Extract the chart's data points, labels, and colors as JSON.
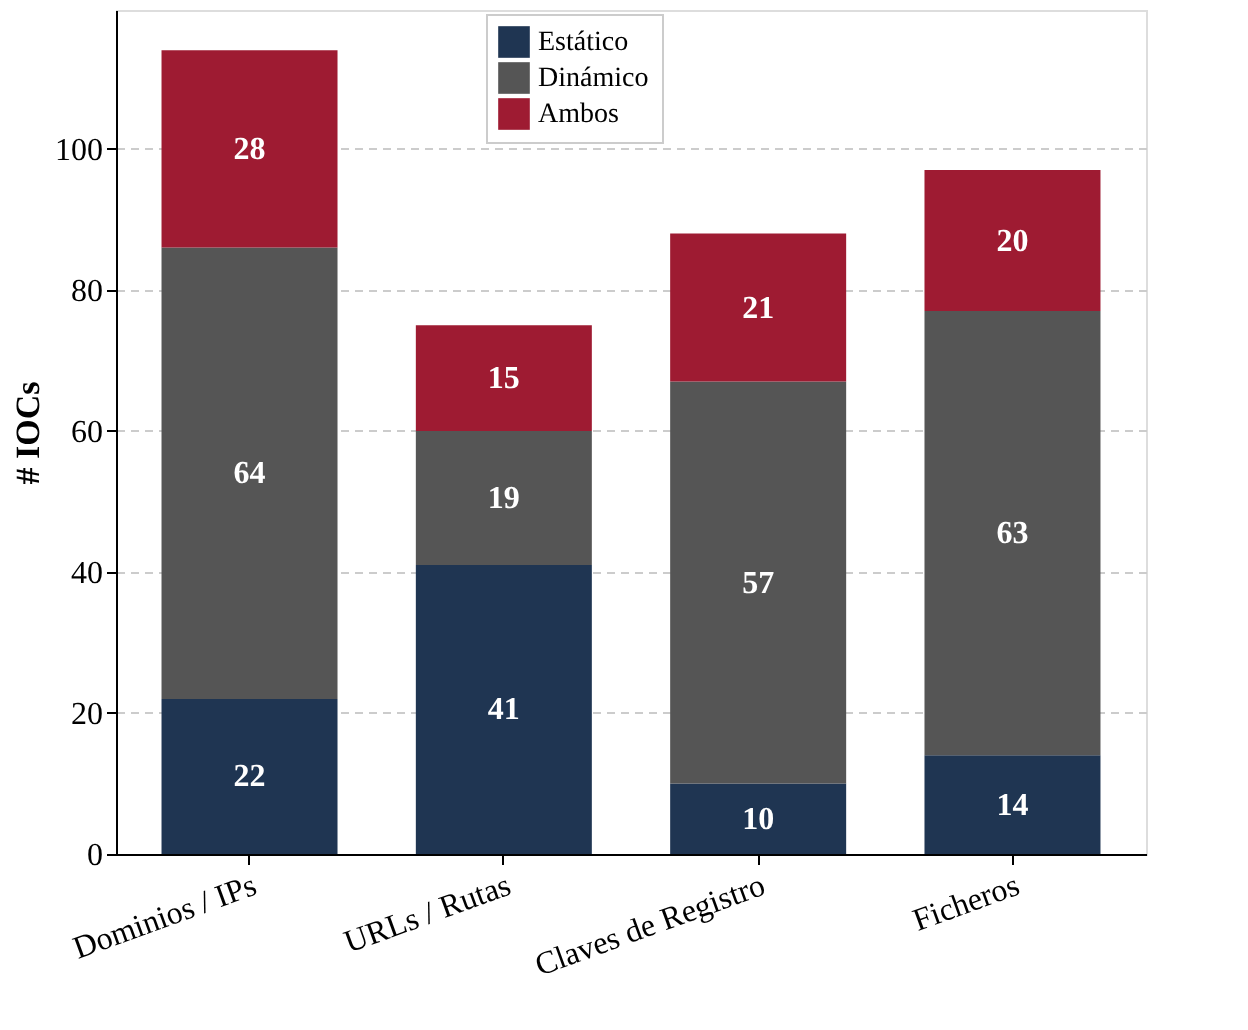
{
  "chart_data": {
    "type": "bar",
    "stacked": true,
    "ylabel": "# IOCs",
    "categories": [
      "Dominios / IPs",
      "URLs / Rutas",
      "Claves de Registro",
      "Ficheros"
    ],
    "series": [
      {
        "name": "Estático",
        "color": "#1f3552",
        "values": [
          22,
          41,
          10,
          14
        ]
      },
      {
        "name": "Dinámico",
        "color": "#555555",
        "values": [
          64,
          19,
          57,
          63
        ]
      },
      {
        "name": "Ambos",
        "color": "#9e1b32",
        "values": [
          28,
          15,
          21,
          20
        ]
      }
    ],
    "ylim": [
      0,
      119.7
    ],
    "yticks": [
      0,
      20,
      40,
      60,
      80,
      100
    ],
    "grid": "y",
    "legend": "top",
    "data_labels": true
  }
}
